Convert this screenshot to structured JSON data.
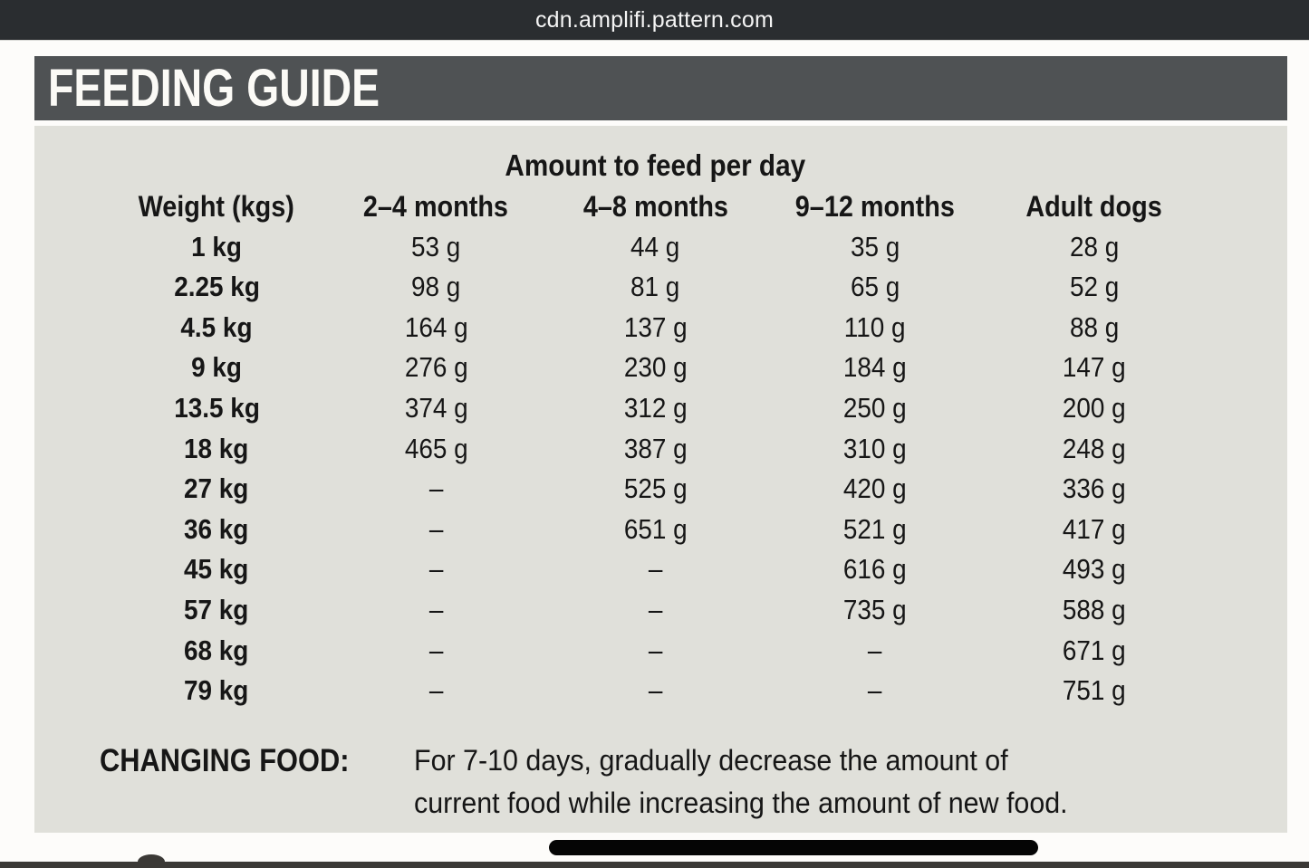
{
  "browser": {
    "url": "cdn.amplifi.pattern.com"
  },
  "page": {
    "header": {
      "title": "FEEDING GUIDE"
    },
    "table": {
      "title": "Amount to feed per day",
      "columns": [
        "Weight (kgs)",
        "2–4 months",
        "4–8 months",
        "9–12 months",
        "Adult dogs"
      ],
      "rows": [
        {
          "weight": "1 kg",
          "values": [
            "53 g",
            "44 g",
            "35 g",
            "28 g"
          ]
        },
        {
          "weight": "2.25 kg",
          "values": [
            "98 g",
            "81 g",
            "65 g",
            "52 g"
          ]
        },
        {
          "weight": "4.5 kg",
          "values": [
            "164 g",
            "137 g",
            "110 g",
            "88 g"
          ]
        },
        {
          "weight": "9 kg",
          "values": [
            "276 g",
            "230 g",
            "184 g",
            "147 g"
          ]
        },
        {
          "weight": "13.5 kg",
          "values": [
            "374 g",
            "312 g",
            "250 g",
            "200 g"
          ]
        },
        {
          "weight": "18 kg",
          "values": [
            "465 g",
            "387 g",
            "310 g",
            "248 g"
          ]
        },
        {
          "weight": "27 kg",
          "values": [
            "–",
            "525 g",
            "420 g",
            "336 g"
          ]
        },
        {
          "weight": "36 kg",
          "values": [
            "–",
            "651 g",
            "521 g",
            "417 g"
          ]
        },
        {
          "weight": "45 kg",
          "values": [
            "–",
            "–",
            "616 g",
            "493 g"
          ]
        },
        {
          "weight": "57 kg",
          "values": [
            "–",
            "–",
            "735 g",
            "588 g"
          ]
        },
        {
          "weight": "68 kg",
          "values": [
            "–",
            "–",
            "–",
            "671 g"
          ]
        },
        {
          "weight": "79 kg",
          "values": [
            "–",
            "–",
            "–",
            "751 g"
          ]
        }
      ]
    },
    "changing_food": {
      "label": "CHANGING FOOD:",
      "line1": "For 7-10 days, gradually decrease the amount of",
      "line2": "current food while increasing the amount of new food."
    }
  },
  "colors": {
    "top_bar": "#2a2d30",
    "header_bar": "#4f5254",
    "panel_bg": "#e0e0da",
    "page_bg": "#fdfcfa",
    "text": "#161616",
    "home_indicator": "#050505"
  }
}
